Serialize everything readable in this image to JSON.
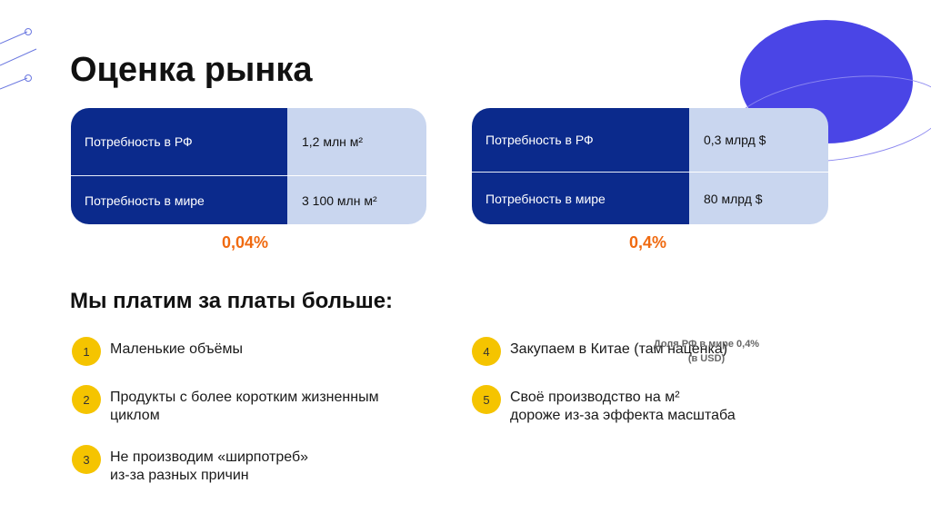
{
  "title": "Оценка рынка",
  "tables": [
    {
      "rows": [
        {
          "label": "Потребность в РФ",
          "value": "1,2 млн м²"
        },
        {
          "label": "Потребность в мире",
          "value": "3 100 млн м²"
        }
      ],
      "percent": "0,04%"
    },
    {
      "rows": [
        {
          "label": "Потребность в РФ",
          "value": "0,3 млрд $"
        },
        {
          "label": "Потребность в мире",
          "value": "80 млрд $"
        }
      ],
      "percent": "0,4%"
    }
  ],
  "subtitle": "Мы платим за платы больше:",
  "reasons": [
    {
      "num": "1",
      "text": "Маленькие объёмы"
    },
    {
      "num": "2",
      "text": "Продукты с более коротким жизненным\nциклом"
    },
    {
      "num": "3",
      "text": "Не производим «ширпотреб»\nиз-за разных причин"
    },
    {
      "num": "4",
      "text": "Закупаем в Китае (там наценка)"
    },
    {
      "num": "5",
      "text": "Своё производство на м²\nдороже из-за эффекта масштаба"
    }
  ],
  "overlay_note": "Доля РФ в мире 0,4%\n(в USD)",
  "colors": {
    "table_label_bg": "#0b2a8c",
    "table_value_bg": "#c9d6ef",
    "percent": "#f06a10",
    "bullet": "#f5c400",
    "accent_circle": "#4a45e6"
  }
}
